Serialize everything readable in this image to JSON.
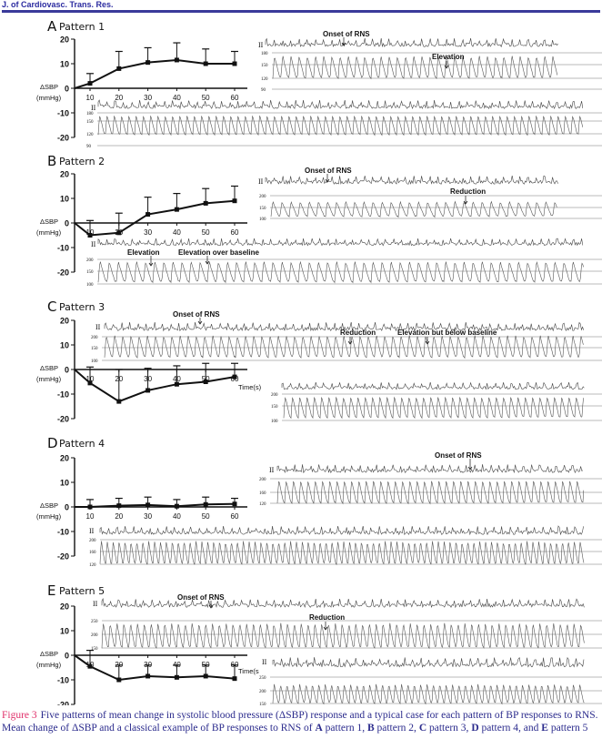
{
  "header": {
    "journal": "J. of Cardiovasc. Trans. Res."
  },
  "colors": {
    "caption_text": "#2a2a8c",
    "figure_label": "#e0306a",
    "header_rule": "#3a3a9a",
    "trace": "#444444"
  },
  "axis_common": {
    "ylabel_line1": "ΔSBP",
    "ylabel_line2": "(mmHg)",
    "time_label": "Time(s)",
    "time_label_cut": "Time(s",
    "lead_label": "II"
  },
  "chart_data": [
    {
      "type": "line",
      "panel": "A",
      "title": "Pattern 1",
      "x": [
        10,
        20,
        30,
        40,
        50,
        60
      ],
      "values": [
        2,
        8,
        10.5,
        11.5,
        10,
        10
      ],
      "error_upper": [
        6,
        15,
        16.5,
        18.5,
        16,
        15
      ],
      "ylim": [
        -20,
        20
      ],
      "yticks": [
        "20",
        "10",
        "0",
        "-10",
        "-20"
      ],
      "xticks": [
        "10",
        "20",
        "30",
        "40",
        "50",
        "60"
      ],
      "xlabel": "",
      "ylabel": "ΔSBP (mmHg)"
    },
    {
      "type": "line",
      "panel": "B",
      "title": "Pattern 2",
      "x": [
        10,
        20,
        30,
        40,
        50,
        60
      ],
      "values": [
        -5,
        -4,
        3.5,
        5.5,
        8,
        9
      ],
      "error_upper": [
        1,
        4,
        10.5,
        12,
        14,
        15
      ],
      "ylim": [
        -20,
        20
      ],
      "yticks": [
        "20",
        "10",
        "0",
        "-10",
        "-20"
      ],
      "xticks": [
        "10",
        "20",
        "30",
        "40",
        "50",
        "60"
      ],
      "xlabel": "",
      "ylabel": "ΔSBP (mmHg)"
    },
    {
      "type": "line",
      "panel": "C",
      "title": "Pattern 3",
      "x": [
        10,
        20,
        30,
        40,
        50,
        60
      ],
      "values": [
        -5.5,
        -13,
        -8.5,
        -6,
        -5,
        -3
      ],
      "error_upper": [
        1,
        0,
        0.5,
        1.5,
        2.5,
        2.5
      ],
      "ylim": [
        -20,
        20
      ],
      "yticks": [
        "20",
        "10",
        "0",
        "-10",
        "-20"
      ],
      "xticks": [
        "10",
        "20",
        "30",
        "40",
        "50",
        "60"
      ],
      "xlabel": "Time(s)",
      "ylabel": "ΔSBP (mmHg)"
    },
    {
      "type": "line",
      "panel": "D",
      "title": "Pattern 4",
      "x": [
        10,
        20,
        30,
        40,
        50,
        60
      ],
      "values": [
        0,
        0.5,
        0.8,
        0.3,
        1,
        1.2
      ],
      "error_upper": [
        3,
        3.5,
        4,
        3,
        4,
        3.5
      ],
      "ylim": [
        -20,
        20
      ],
      "yticks": [
        "20",
        "10",
        "0",
        "-10",
        "-20"
      ],
      "xticks": [
        "10",
        "20",
        "30",
        "40",
        "50",
        "60"
      ],
      "xlabel": "",
      "ylabel": "ΔSBP (mmHg)"
    },
    {
      "type": "line",
      "panel": "E",
      "title": "Pattern 5",
      "x": [
        10,
        20,
        30,
        40,
        50,
        60
      ],
      "values": [
        -4.5,
        -10,
        -8.5,
        -9,
        -8.5,
        -9.5
      ],
      "error_upper": [
        2,
        -4,
        -4,
        -4,
        -4,
        -4
      ],
      "ylim": [
        -20,
        20
      ],
      "yticks": [
        "20",
        "10",
        "0",
        "-10",
        "-20"
      ],
      "xticks": [
        "10",
        "20",
        "30",
        "40",
        "50",
        "60"
      ],
      "xlabel": "Time(s",
      "ylabel": "ΔSBP (mmHg)"
    }
  ],
  "annotations": {
    "A": [
      "Onset of RNS",
      "Elevation"
    ],
    "B": [
      "Onset of RNS",
      "Reduction",
      "Elevation",
      "Elevation over baseline"
    ],
    "C": [
      "Onset of RNS",
      "Reduction",
      "Elevation but below baseline"
    ],
    "D": [
      "Onset of RNS"
    ],
    "E": [
      "Onset of RNS",
      "Reduction"
    ]
  },
  "trace_scales": {
    "A1": [
      "180",
      "150",
      "120",
      "90"
    ],
    "A2": [
      "180",
      "150",
      "120",
      "90"
    ],
    "B1": [
      "200",
      "150",
      "100"
    ],
    "B2": [
      "200",
      "150",
      "100"
    ],
    "C1": [
      "200",
      "150",
      "100"
    ],
    "C2": [
      "200",
      "150",
      "100"
    ],
    "D1": [
      "200",
      "160",
      "120"
    ],
    "D2": [
      "200",
      "160",
      "120"
    ],
    "E1": [
      "250",
      "200",
      "150"
    ],
    "E2": [
      "250",
      "200",
      "150"
    ]
  },
  "caption": {
    "label": "Figure 3",
    "text1": "Five patterns of mean change in systolic blood pressure (ΔSBP) response and a typical case for each pattern of BP responses to RNS. Mean change of ΔSBP and a classical example of BP responses to RNS of ",
    "A": "A",
    "p1": " pattern 1, ",
    "B": "B",
    "p2": " pattern 2, ",
    "C": "C",
    "p3": " pattern 3, ",
    "D": "D",
    "p4": " pattern 4, and ",
    "E": "E",
    "p5": " pattern 5"
  }
}
